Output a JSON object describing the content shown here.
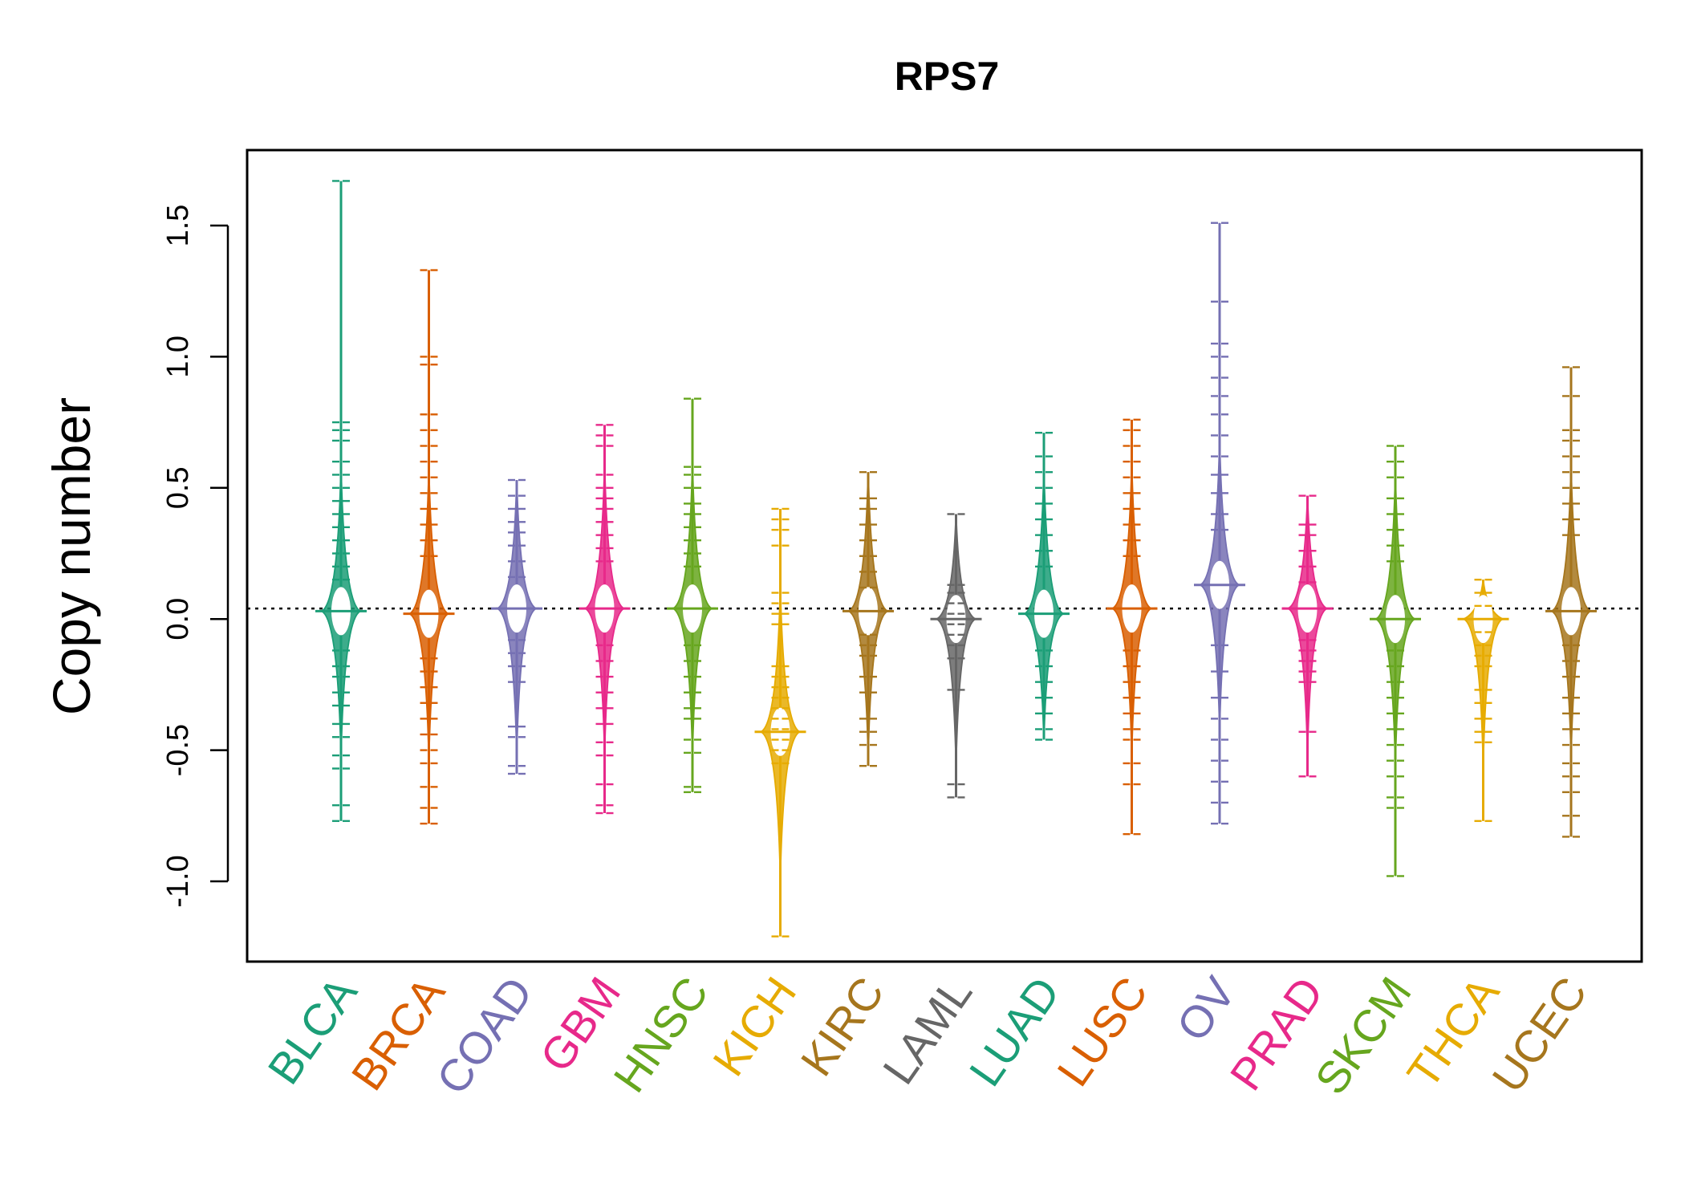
{
  "chart_data": {
    "type": "beanplot",
    "title": "RPS7",
    "xlabel": "",
    "ylabel": "Copy number",
    "ylim": [
      -1.3,
      1.8
    ],
    "yticks": [
      -1.0,
      -0.5,
      0.0,
      0.5,
      1.0,
      1.5
    ],
    "ytick_labels": [
      "-1.0",
      "-0.5",
      "0.0",
      "0.5",
      "1.0",
      "1.5"
    ],
    "overall_reference_line": 0.04,
    "categories": [
      "BLCA",
      "BRCA",
      "COAD",
      "GBM",
      "HNSC",
      "KICH",
      "KIRC",
      "LAML",
      "LUAD",
      "LUSC",
      "OV",
      "PRAD",
      "SKCM",
      "THCA",
      "UCEC"
    ],
    "colors": [
      "#1B9E77",
      "#D95F02",
      "#7570B3",
      "#E7298A",
      "#66A61E",
      "#E6AB02",
      "#A6761D",
      "#666666",
      "#1B9E77",
      "#D95F02",
      "#7570B3",
      "#E7298A",
      "#66A61E",
      "#E6AB02",
      "#A6761D"
    ],
    "series": [
      {
        "name": "BLCA",
        "mean": 0.03,
        "min": -0.77,
        "max": 1.67,
        "points": [
          1.67,
          0.75,
          0.72,
          0.68,
          0.6,
          0.55,
          0.5,
          0.45,
          0.4,
          0.35,
          0.3,
          0.25,
          0.2,
          0.15,
          -0.12,
          -0.18,
          -0.22,
          -0.28,
          -0.33,
          -0.4,
          -0.45,
          -0.52,
          -0.57,
          -0.71,
          -0.77
        ]
      },
      {
        "name": "BRCA",
        "mean": 0.02,
        "min": -0.78,
        "max": 1.33,
        "points": [
          1.33,
          1.0,
          0.97,
          0.78,
          0.72,
          0.66,
          0.6,
          0.54,
          0.48,
          0.42,
          0.36,
          0.3,
          0.24,
          -0.15,
          -0.2,
          -0.26,
          -0.32,
          -0.38,
          -0.44,
          -0.5,
          -0.55,
          -0.64,
          -0.72,
          -0.78
        ]
      },
      {
        "name": "COAD",
        "mean": 0.04,
        "min": -0.59,
        "max": 0.53,
        "points": [
          0.53,
          0.47,
          0.42,
          0.37,
          0.33,
          0.28,
          0.22,
          0.16,
          -0.08,
          -0.13,
          -0.18,
          -0.24,
          -0.41,
          -0.45,
          -0.56,
          -0.59
        ]
      },
      {
        "name": "GBM",
        "mean": 0.04,
        "min": -0.74,
        "max": 0.74,
        "points": [
          0.74,
          0.7,
          0.66,
          0.55,
          0.5,
          0.46,
          0.42,
          0.37,
          0.32,
          0.27,
          0.22,
          -0.1,
          -0.16,
          -0.22,
          -0.28,
          -0.34,
          -0.4,
          -0.47,
          -0.52,
          -0.63,
          -0.71,
          -0.74
        ]
      },
      {
        "name": "HNSC",
        "mean": 0.04,
        "min": -0.66,
        "max": 0.84,
        "points": [
          0.84,
          0.58,
          0.55,
          0.5,
          0.44,
          0.4,
          0.35,
          0.3,
          0.25,
          0.2,
          -0.1,
          -0.16,
          -0.22,
          -0.28,
          -0.34,
          -0.38,
          -0.46,
          -0.51,
          -0.64,
          -0.66
        ]
      },
      {
        "name": "KICH",
        "mean": -0.43,
        "min": -1.21,
        "max": 0.42,
        "points": [
          0.42,
          0.38,
          0.34,
          0.28,
          0.1,
          0.06,
          0.02,
          -0.02,
          -0.18,
          -0.22,
          -0.26,
          -0.3,
          -0.34,
          -0.38,
          -0.42,
          -0.46,
          -0.5,
          -0.55,
          -1.21
        ]
      },
      {
        "name": "KIRC",
        "mean": 0.03,
        "min": -0.56,
        "max": 0.56,
        "points": [
          0.56,
          0.46,
          0.42,
          0.36,
          0.3,
          0.24,
          0.18,
          0.12,
          -0.06,
          -0.1,
          -0.14,
          -0.22,
          -0.28,
          -0.38,
          -0.43,
          -0.48,
          -0.56
        ]
      },
      {
        "name": "LAML",
        "mean": 0.0,
        "min": -0.68,
        "max": 0.4,
        "points": [
          0.4,
          0.13,
          0.1,
          0.06,
          0.02,
          -0.02,
          -0.06,
          -0.1,
          -0.15,
          -0.27,
          -0.63,
          -0.68
        ]
      },
      {
        "name": "LUAD",
        "mean": 0.02,
        "min": -0.46,
        "max": 0.71,
        "points": [
          0.71,
          0.62,
          0.56,
          0.5,
          0.44,
          0.38,
          0.32,
          0.26,
          0.2,
          -0.12,
          -0.18,
          -0.24,
          -0.3,
          -0.36,
          -0.42,
          -0.46
        ]
      },
      {
        "name": "LUSC",
        "mean": 0.04,
        "min": -0.82,
        "max": 0.76,
        "points": [
          0.76,
          0.72,
          0.66,
          0.6,
          0.54,
          0.48,
          0.42,
          0.36,
          0.3,
          0.24,
          -0.12,
          -0.18,
          -0.24,
          -0.3,
          -0.36,
          -0.42,
          -0.46,
          -0.55,
          -0.63,
          -0.82
        ]
      },
      {
        "name": "OV",
        "mean": 0.13,
        "min": -0.78,
        "max": 1.51,
        "points": [
          1.51,
          1.21,
          1.05,
          1.0,
          0.92,
          0.85,
          0.78,
          0.7,
          0.62,
          0.55,
          0.48,
          0.4,
          0.34,
          -0.1,
          -0.2,
          -0.3,
          -0.38,
          -0.46,
          -0.54,
          -0.62,
          -0.7,
          -0.78
        ]
      },
      {
        "name": "PRAD",
        "mean": 0.04,
        "min": -0.6,
        "max": 0.47,
        "points": [
          0.47,
          0.36,
          0.32,
          0.26,
          0.2,
          0.14,
          -0.08,
          -0.12,
          -0.16,
          -0.2,
          -0.24,
          -0.43,
          -0.6
        ]
      },
      {
        "name": "SKCM",
        "mean": 0.0,
        "min": -0.98,
        "max": 0.66,
        "points": [
          0.66,
          0.6,
          0.54,
          0.46,
          0.4,
          0.34,
          0.28,
          0.22,
          -0.12,
          -0.18,
          -0.24,
          -0.3,
          -0.36,
          -0.42,
          -0.48,
          -0.54,
          -0.6,
          -0.68,
          -0.72,
          -0.98
        ]
      },
      {
        "name": "THCA",
        "mean": 0.0,
        "min": -0.77,
        "max": 0.15,
        "points": [
          0.15,
          0.1,
          0.05,
          -0.05,
          -0.1,
          -0.14,
          -0.18,
          -0.27,
          -0.32,
          -0.38,
          -0.43,
          -0.47,
          -0.77
        ]
      },
      {
        "name": "UCEC",
        "mean": 0.03,
        "min": -0.83,
        "max": 0.96,
        "points": [
          0.96,
          0.85,
          0.72,
          0.68,
          0.62,
          0.56,
          0.5,
          0.44,
          0.38,
          0.32,
          -0.1,
          -0.16,
          -0.22,
          -0.3,
          -0.36,
          -0.42,
          -0.48,
          -0.55,
          -0.6,
          -0.66,
          -0.75,
          -0.83
        ]
      }
    ]
  }
}
